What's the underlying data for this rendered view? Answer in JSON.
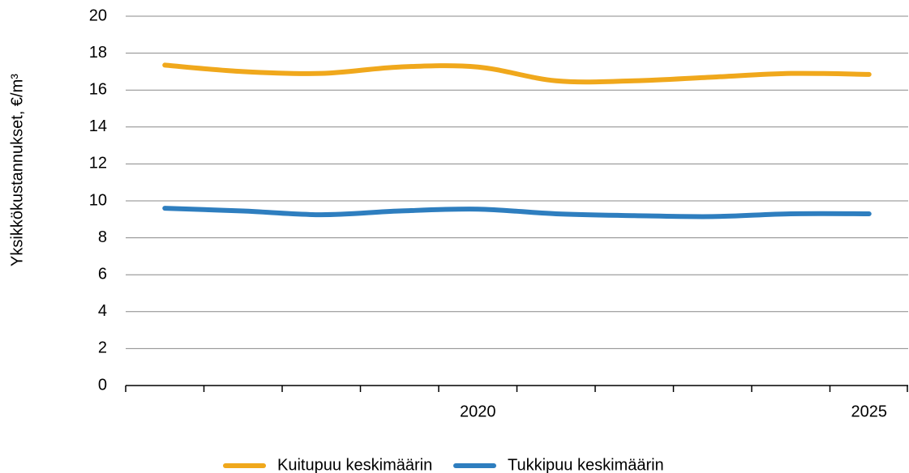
{
  "chart_data": {
    "type": "line",
    "y_label": "Yksikkökustannukset, €/m³",
    "categories": [
      null,
      null,
      null,
      null,
      "2020",
      null,
      null,
      null,
      null,
      "2025"
    ],
    "series": [
      {
        "name": "Kuitupuu keskimäärin",
        "color": "#f0a81c",
        "values": [
          17.35,
          17.0,
          16.9,
          17.25,
          17.25,
          16.5,
          16.5,
          16.7,
          16.9,
          16.85
        ]
      },
      {
        "name": "Tukkipuu keskimäärin",
        "color": "#2e7ebf",
        "values": [
          9.6,
          9.45,
          9.25,
          9.45,
          9.55,
          9.3,
          9.2,
          9.15,
          9.3,
          9.3
        ]
      }
    ],
    "ylim": [
      0,
      20
    ],
    "yticks": [
      0,
      2,
      4,
      6,
      8,
      10,
      12,
      14,
      16,
      18,
      20
    ],
    "grid": true,
    "smooth": true,
    "legend": "bottom"
  }
}
